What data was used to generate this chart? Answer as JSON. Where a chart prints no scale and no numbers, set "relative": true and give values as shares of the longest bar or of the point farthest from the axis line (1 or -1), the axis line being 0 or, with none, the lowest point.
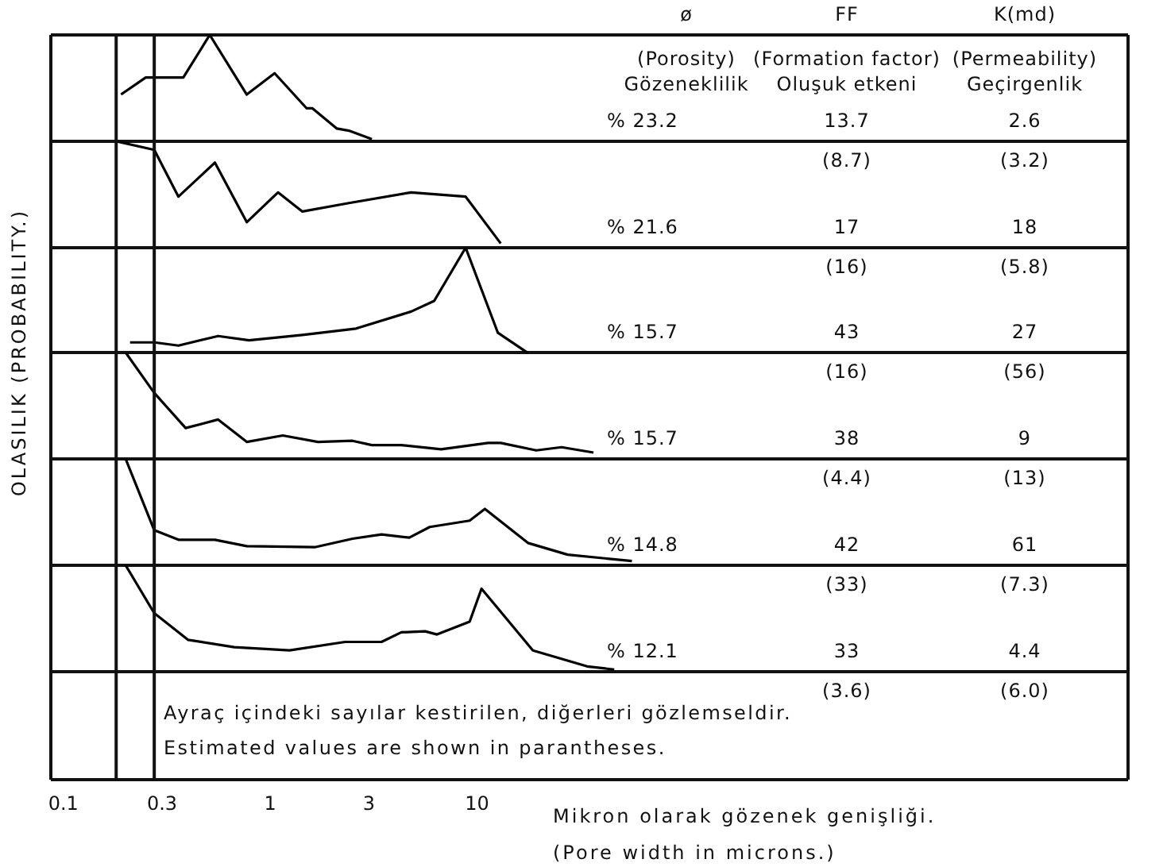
{
  "chart_data": [
    {
      "type": "line",
      "relative": true,
      "log": "x",
      "xlim": [
        0.087,
        14000
      ],
      "tick_labels": false,
      "marker": "none",
      "ylabel": "OLASILIK (PROBABILITY.)",
      "x": [
        0.19,
        0.25,
        0.38,
        0.51,
        0.77,
        1.05,
        1.5,
        1.6,
        2.1,
        2.4,
        3.1
      ],
      "series": [
        {
          "color": "#000000",
          "values": [
            0.44,
            0.6,
            0.6,
            1,
            0.44,
            0.64,
            0.31,
            0.31,
            0.12,
            0.1,
            0.02
          ]
        }
      ],
      "annotations": [
        "% 23.2",
        "13.7",
        "2.6",
        "(8.7)",
        "(3.2)",
        "ø",
        "FF",
        "K(md)",
        "(Porosity)",
        "(Formation factor)",
        "(Permeability)",
        "Gözeneklilik",
        "Oluşuk etkeni",
        "Geçirgenlik"
      ]
    },
    {
      "type": "line",
      "relative": true,
      "log": "x",
      "xlim": [
        0.087,
        14000
      ],
      "tick_labels": false,
      "marker": "none",
      "x": [
        0.18,
        0.275,
        0.36,
        0.54,
        0.77,
        1.09,
        1.43,
        2.4,
        4.8,
        8.8,
        13
      ],
      "series": [
        {
          "color": "#000000",
          "values": [
            1,
            0.92,
            0.48,
            0.8,
            0.24,
            0.52,
            0.34,
            0.42,
            0.52,
            0.48,
            0.04
          ]
        }
      ],
      "annotations": [
        "% 21.6",
        "17",
        "18",
        "(16)",
        "(5.8)"
      ]
    },
    {
      "type": "line",
      "relative": true,
      "log": "x",
      "xlim": [
        0.087,
        14000
      ],
      "tick_labels": false,
      "marker": "none",
      "x": [
        0.21,
        0.275,
        0.36,
        0.56,
        0.79,
        1.43,
        2.6,
        4.8,
        6.2,
        8.8,
        12.6,
        17.6
      ],
      "series": [
        {
          "color": "#000000",
          "values": [
            0.11,
            0.11,
            0.08,
            0.17,
            0.13,
            0.18,
            0.24,
            0.4,
            0.5,
            1,
            0.2,
            0.01
          ]
        }
      ],
      "annotations": [
        "% 15.7",
        "43",
        "27",
        "(16)",
        "(56)"
      ]
    },
    {
      "type": "line",
      "relative": true,
      "log": "x",
      "xlim": [
        0.087,
        14000
      ],
      "tick_labels": false,
      "marker": "none",
      "x": [
        0.2,
        0.275,
        0.29,
        0.39,
        0.56,
        0.77,
        1.15,
        1.7,
        2.5,
        3.1,
        4.3,
        6.7,
        11.3,
        13,
        19.3,
        25.6,
        36.5
      ],
      "series": [
        {
          "color": "#000000",
          "values": [
            1,
            0.62,
            0.57,
            0.29,
            0.37,
            0.16,
            0.22,
            0.16,
            0.17,
            0.13,
            0.13,
            0.09,
            0.15,
            0.15,
            0.08,
            0.11,
            0.06
          ]
        }
      ],
      "annotations": [
        "% 15.7",
        "38",
        "9",
        "(4.4)",
        "(13)"
      ]
    },
    {
      "type": "line",
      "relative": true,
      "log": "x",
      "xlim": [
        0.087,
        14000
      ],
      "tick_labels": false,
      "marker": "none",
      "x": [
        0.2,
        0.275,
        0.36,
        0.54,
        0.77,
        1.64,
        2.5,
        3.45,
        4.7,
        5.9,
        9.2,
        10.9,
        17.6,
        27.4,
        56
      ],
      "series": [
        {
          "color": "#000000",
          "values": [
            1,
            0.33,
            0.24,
            0.24,
            0.18,
            0.17,
            0.25,
            0.29,
            0.26,
            0.36,
            0.42,
            0.53,
            0.21,
            0.1,
            0.04
          ]
        }
      ],
      "annotations": [
        "% 14.8",
        "42",
        "61",
        "(33)",
        "(7.3)"
      ]
    },
    {
      "type": "line",
      "relative": true,
      "log": "x",
      "xlim": [
        0.087,
        14000
      ],
      "xticks": [
        0.1,
        0.3,
        1,
        3,
        10
      ],
      "tick_labels": "x",
      "marker": "none",
      "xlabel": "Mikron olarak gözenek genişliği.\n(Pore width in microns.)",
      "x": [
        0.2,
        0.275,
        0.4,
        0.67,
        1.24,
        2.3,
        3.45,
        4.3,
        5.6,
        6.4,
        9.2,
        10.5,
        18.6,
        34,
        46
      ],
      "series": [
        {
          "color": "#000000",
          "values": [
            1,
            0.55,
            0.3,
            0.23,
            0.2,
            0.28,
            0.28,
            0.37,
            0.38,
            0.35,
            0.47,
            0.78,
            0.2,
            0.05,
            0.02
          ]
        }
      ],
      "ref_lines": [
        {
          "axis": "x",
          "value": 0.18
        },
        {
          "axis": "x",
          "value": 0.275
        }
      ],
      "annotations": [
        "% 12.1",
        "33",
        "4.4",
        "(3.6)",
        "(6.0)",
        "Ayraç içindeki sayılar kestirilen, diğerleri gözlemseldir.",
        "Estimated values are shown in parantheses."
      ]
    }
  ]
}
